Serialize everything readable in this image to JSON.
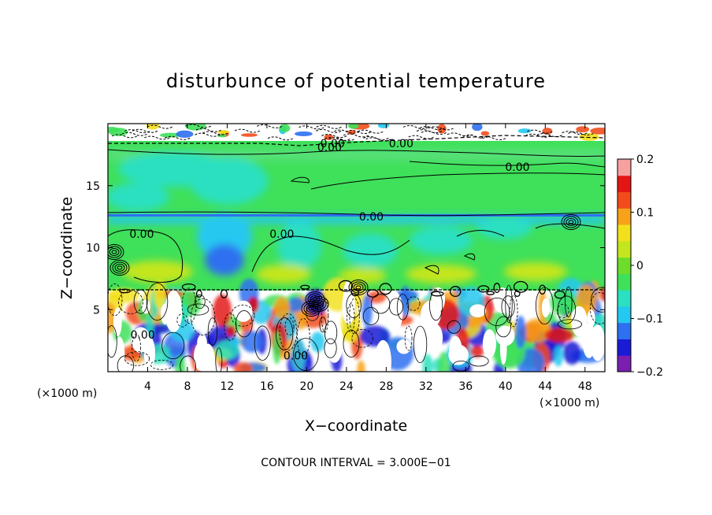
{
  "chart_data": {
    "type": "heatmap",
    "title": "disturbunce of potential temperature",
    "xlabel": "X−coordinate",
    "ylabel": "Z−coordinate",
    "x_unit": "(×1000 m)",
    "z_unit": "(×1000 m)",
    "xlim": [
      0,
      50
    ],
    "ylim": [
      0,
      20
    ],
    "x_ticks": [
      4,
      8,
      12,
      16,
      20,
      24,
      28,
      32,
      36,
      40,
      44,
      48
    ],
    "x_tick_labels": [
      "4",
      "8",
      "12",
      "16",
      "20",
      "24",
      "28",
      "32",
      "36",
      "40",
      "44",
      "48"
    ],
    "y_ticks": [
      5,
      10,
      15
    ],
    "y_tick_labels": [
      "5",
      "10",
      "15"
    ],
    "colorbar": {
      "range": [
        -0.2,
        0.2
      ],
      "ticks": [
        0.2,
        0.1,
        0,
        -0.1,
        -0.2
      ],
      "tick_labels": [
        "0.2",
        "0.1",
        "0",
        "−0.1",
        "−0.2"
      ],
      "colors": [
        "#7a1fb0",
        "#1b1bd6",
        "#2d70f0",
        "#25c8f0",
        "#2be0c0",
        "#3fe05a",
        "#6edc2a",
        "#c4e61e",
        "#f3e01c",
        "#f7a21a",
        "#f24c1c",
        "#e41515",
        "#f6a0a0"
      ]
    },
    "contour_labels": [
      {
        "text": "0.00",
        "x": 22.6,
        "z": 18.4
      },
      {
        "text": "0.00",
        "x": 22.3,
        "z": 18.1
      },
      {
        "text": "0.00",
        "x": 29.5,
        "z": 18.4
      },
      {
        "text": "0.00",
        "x": 41.2,
        "z": 16.5
      },
      {
        "text": "0.00",
        "x": 26.5,
        "z": 12.5
      },
      {
        "text": "0.00",
        "x": 3.4,
        "z": 11.1
      },
      {
        "text": "0.00",
        "x": 17.5,
        "z": 11.1
      },
      {
        "text": "0.00",
        "x": 18.9,
        "z": 1.3
      },
      {
        "text": "0.00",
        "x": 3.5,
        "z": 3.0
      }
    ],
    "annotation": "CONTOUR INTERVAL = 3.000E−01"
  }
}
